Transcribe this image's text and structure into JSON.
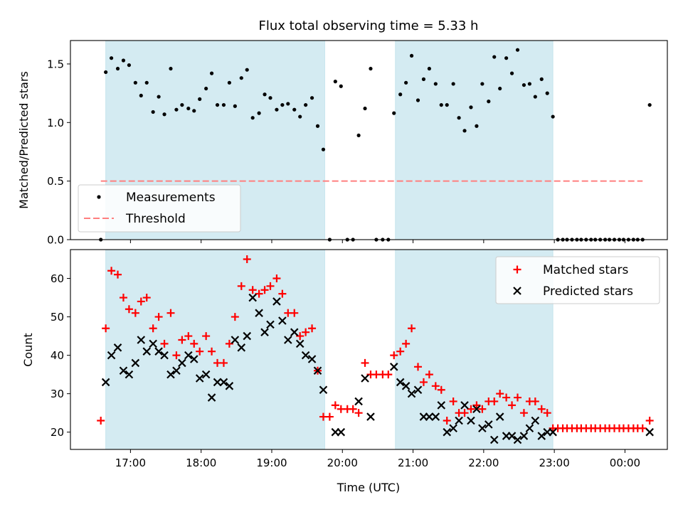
{
  "title": "Flux total observing time = 5.33 h",
  "chart_data": [
    {
      "type": "scatter",
      "name": "ratio-panel",
      "ylabel": "Matched/Predicted stars",
      "ylim": [
        0,
        1.7
      ],
      "yticks": [
        0.0,
        0.5,
        1.0,
        1.5
      ],
      "ytick_labels": [
        "0.0",
        "0.5",
        "1.0",
        "1.5"
      ],
      "xlim": [
        16.15,
        24.6
      ],
      "xticks": [
        17,
        18,
        19,
        20,
        21,
        22,
        23,
        24
      ],
      "shaded_ranges": [
        [
          16.65,
          19.75
        ],
        [
          20.75,
          22.98
        ]
      ],
      "series": [
        {
          "name": "Measurements",
          "marker": "dot",
          "color": "#000000",
          "x": [
            16.58,
            16.65,
            16.73,
            16.82,
            16.9,
            16.98,
            17.07,
            17.15,
            17.23,
            17.32,
            17.4,
            17.48,
            17.57,
            17.65,
            17.73,
            17.82,
            17.9,
            17.98,
            18.07,
            18.15,
            18.23,
            18.32,
            18.4,
            18.48,
            18.57,
            18.65,
            18.73,
            18.82,
            18.9,
            18.98,
            19.07,
            19.15,
            19.23,
            19.32,
            19.4,
            19.48,
            19.57,
            19.65,
            19.73,
            19.82,
            19.9,
            19.98,
            20.07,
            20.15,
            20.23,
            20.32,
            20.4,
            20.48,
            20.57,
            20.65,
            20.73,
            20.82,
            20.9,
            20.98,
            21.07,
            21.15,
            21.23,
            21.32,
            21.4,
            21.48,
            21.57,
            21.65,
            21.73,
            21.82,
            21.9,
            21.98,
            22.07,
            22.15,
            22.23,
            22.32,
            22.4,
            22.48,
            22.57,
            22.65,
            22.73,
            22.82,
            22.9,
            22.98,
            23.05,
            23.12,
            23.18,
            23.25,
            23.32,
            23.38,
            23.45,
            23.52,
            23.58,
            23.65,
            23.72,
            23.78,
            23.85,
            23.92,
            23.98,
            24.05,
            24.12,
            24.18,
            24.25,
            24.35
          ],
          "y": [
            0.0,
            1.43,
            1.55,
            1.46,
            1.53,
            1.49,
            1.34,
            1.23,
            1.34,
            1.09,
            1.22,
            1.07,
            1.46,
            1.11,
            1.15,
            1.12,
            1.1,
            1.2,
            1.29,
            1.42,
            1.15,
            1.15,
            1.34,
            1.14,
            1.38,
            1.45,
            1.04,
            1.08,
            1.24,
            1.21,
            1.11,
            1.15,
            1.16,
            1.11,
            1.05,
            1.15,
            1.21,
            0.97,
            0.77,
            0.0,
            1.35,
            1.31,
            0.0,
            0.0,
            0.89,
            1.12,
            1.46,
            0.0,
            0.0,
            0.0,
            1.08,
            1.24,
            1.34,
            1.57,
            1.19,
            1.37,
            1.46,
            1.33,
            1.15,
            1.15,
            1.33,
            1.04,
            0.93,
            1.13,
            0.97,
            1.33,
            1.18,
            1.56,
            1.29,
            1.55,
            1.42,
            1.62,
            1.32,
            1.33,
            1.22,
            1.37,
            1.25,
            1.05,
            0.0,
            0.0,
            0.0,
            0.0,
            0.0,
            0.0,
            0.0,
            0.0,
            0.0,
            0.0,
            0.0,
            0.0,
            0.0,
            0.0,
            0.0,
            0.0,
            0.0,
            0.0,
            0.0,
            1.15
          ]
        },
        {
          "name": "Threshold",
          "type": "line",
          "style": "dashed",
          "color": "#ff7f7f",
          "x": [
            16.58,
            24.25
          ],
          "y": [
            0.5,
            0.5
          ]
        }
      ],
      "legend": {
        "position": "lower-left",
        "entries": [
          "Measurements",
          "Threshold"
        ]
      }
    },
    {
      "type": "scatter",
      "name": "count-panel",
      "xlabel": "Time (UTC)",
      "ylabel": "Count",
      "ylim": [
        15.5,
        67.5
      ],
      "yticks": [
        20,
        30,
        40,
        50,
        60
      ],
      "ytick_labels": [
        "20",
        "30",
        "40",
        "50",
        "60"
      ],
      "xlim": [
        16.15,
        24.6
      ],
      "xticks": [
        17,
        18,
        19,
        20,
        21,
        22,
        23,
        24
      ],
      "xtick_labels": [
        "17:00",
        "18:00",
        "19:00",
        "20:00",
        "21:00",
        "22:00",
        "23:00",
        "00:00"
      ],
      "shaded_ranges": [
        [
          16.65,
          19.75
        ],
        [
          20.75,
          22.98
        ]
      ],
      "series": [
        {
          "name": "Matched stars",
          "marker": "plus",
          "color": "#ff0000",
          "x": [
            16.58,
            16.65,
            16.73,
            16.82,
            16.9,
            16.98,
            17.07,
            17.15,
            17.23,
            17.32,
            17.4,
            17.48,
            17.57,
            17.65,
            17.73,
            17.82,
            17.9,
            17.98,
            18.07,
            18.15,
            18.23,
            18.32,
            18.4,
            18.48,
            18.57,
            18.65,
            18.73,
            18.82,
            18.9,
            18.98,
            19.07,
            19.15,
            19.23,
            19.32,
            19.4,
            19.48,
            19.57,
            19.65,
            19.73,
            19.82,
            19.9,
            19.98,
            20.07,
            20.15,
            20.23,
            20.32,
            20.4,
            20.48,
            20.57,
            20.65,
            20.73,
            20.82,
            20.9,
            20.98,
            21.07,
            21.15,
            21.23,
            21.32,
            21.4,
            21.48,
            21.57,
            21.65,
            21.73,
            21.82,
            21.9,
            21.98,
            22.07,
            22.15,
            22.23,
            22.32,
            22.4,
            22.48,
            22.57,
            22.65,
            22.73,
            22.82,
            22.9,
            22.98,
            23.05,
            23.12,
            23.18,
            23.25,
            23.32,
            23.38,
            23.45,
            23.52,
            23.58,
            23.65,
            23.72,
            23.78,
            23.85,
            23.92,
            23.98,
            24.05,
            24.12,
            24.18,
            24.25,
            24.35
          ],
          "y": [
            23,
            47,
            62,
            61,
            55,
            52,
            51,
            54,
            55,
            47,
            50,
            43,
            51,
            40,
            44,
            45,
            43,
            41,
            45,
            41,
            38,
            38,
            43,
            50,
            58,
            65,
            57,
            56,
            57,
            58,
            60,
            56,
            51,
            51,
            45,
            46,
            47,
            36,
            24,
            24,
            27,
            26,
            26,
            26,
            25,
            38,
            35,
            35,
            35,
            35,
            40,
            41,
            43,
            47,
            37,
            33,
            35,
            32,
            31,
            23,
            28,
            25,
            25,
            26,
            27,
            26,
            28,
            28,
            30,
            29,
            27,
            29,
            25,
            28,
            28,
            26,
            25,
            21,
            21,
            21,
            21,
            21,
            21,
            21,
            21,
            21,
            21,
            21,
            21,
            21,
            21,
            21,
            21,
            21,
            21,
            21,
            21,
            23
          ]
        },
        {
          "name": "Predicted stars",
          "marker": "x",
          "color": "#000000",
          "x": [
            16.65,
            16.73,
            16.82,
            16.9,
            16.98,
            17.07,
            17.15,
            17.23,
            17.32,
            17.4,
            17.48,
            17.57,
            17.65,
            17.73,
            17.82,
            17.9,
            17.98,
            18.07,
            18.15,
            18.23,
            18.32,
            18.4,
            18.48,
            18.57,
            18.65,
            18.73,
            18.82,
            18.9,
            18.98,
            19.07,
            19.15,
            19.23,
            19.32,
            19.4,
            19.48,
            19.57,
            19.65,
            19.73,
            19.9,
            19.98,
            20.23,
            20.32,
            20.4,
            20.73,
            20.82,
            20.9,
            20.98,
            21.07,
            21.15,
            21.23,
            21.32,
            21.4,
            21.48,
            21.57,
            21.65,
            21.73,
            21.82,
            21.9,
            21.98,
            22.07,
            22.15,
            22.23,
            22.32,
            22.4,
            22.48,
            22.57,
            22.65,
            22.73,
            22.82,
            22.9,
            22.98,
            24.35
          ],
          "y": [
            33,
            40,
            42,
            36,
            35,
            38,
            44,
            41,
            43,
            41,
            40,
            35,
            36,
            38,
            40,
            39,
            34,
            35,
            29,
            33,
            33,
            32,
            44,
            42,
            45,
            55,
            51,
            46,
            48,
            54,
            49,
            44,
            46,
            43,
            40,
            39,
            36,
            31,
            20,
            20,
            28,
            34,
            24,
            37,
            33,
            32,
            30,
            31,
            24,
            24,
            24,
            27,
            20,
            21,
            23,
            27,
            23,
            26,
            21,
            22,
            18,
            24,
            19,
            19,
            18,
            19,
            21,
            23,
            19,
            20,
            20,
            20
          ]
        }
      ],
      "legend": {
        "position": "upper-right",
        "entries": [
          "Matched stars",
          "Predicted stars"
        ]
      }
    }
  ]
}
